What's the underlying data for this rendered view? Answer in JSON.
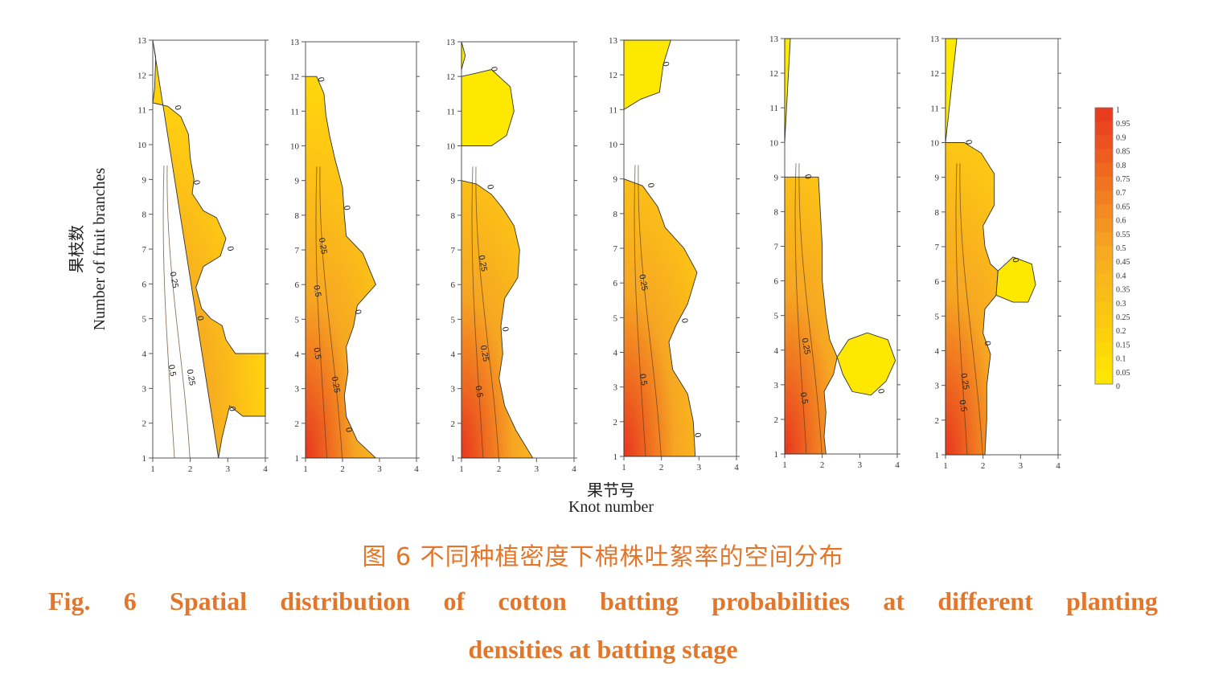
{
  "figure": {
    "ylabel_cn": "果枝数",
    "ylabel_en": "Number of fruit branches",
    "xlabel_cn": "果节号",
    "xlabel_en": "Knot number",
    "caption_cn": "图 6    不同种植密度下棉株吐絮率的空间分布",
    "caption_en_line1": "Fig. 6    Spatial distribution of cotton batting probabilities at different planting",
    "caption_en_line2": "densities at batting stage"
  },
  "colors": {
    "low": "#ffe800",
    "mid": "#f6a623",
    "high": "#e8351e"
  },
  "chart_data": [
    {
      "type": "heatmap",
      "panel": 1,
      "xlim": [
        1,
        4
      ],
      "ylim": [
        1,
        13
      ],
      "xticks": [
        1,
        2,
        3,
        4
      ],
      "yticks": [
        1,
        2,
        3,
        4,
        5,
        6,
        7,
        8,
        9,
        10,
        11,
        12,
        13
      ],
      "zero_contour": [
        [
          1,
          13
        ],
        [
          1.08,
          12.5
        ],
        [
          1.05,
          11.6
        ],
        [
          1,
          11.2
        ],
        [
          1.4,
          11.1
        ],
        [
          1.75,
          10.8
        ],
        [
          1.95,
          10.3
        ],
        [
          2,
          9.6
        ],
        [
          2.1,
          9
        ],
        [
          2.05,
          8.6
        ],
        [
          2.35,
          8.1
        ],
        [
          2.7,
          7.9
        ],
        [
          2.95,
          7.3
        ],
        [
          2.8,
          6.8
        ],
        [
          2.35,
          6.5
        ],
        [
          2.15,
          5.9
        ],
        [
          2.3,
          5.3
        ],
        [
          2.55,
          5
        ],
        [
          2.85,
          4.8
        ],
        [
          2.95,
          4.4
        ],
        [
          3.2,
          4
        ],
        [
          4,
          4
        ],
        [
          4,
          2.2
        ],
        [
          3.4,
          2.2
        ],
        [
          3.05,
          2.5
        ],
        [
          2.85,
          1.6
        ],
        [
          2.75,
          1
        ]
      ],
      "contour_labels": [
        {
          "value": "0",
          "x": 1.6,
          "y": 11.05
        },
        {
          "value": "0",
          "x": 2.1,
          "y": 8.9
        },
        {
          "value": "0",
          "x": 3.0,
          "y": 7.0
        },
        {
          "value": "0",
          "x": 2.2,
          "y": 5.0
        },
        {
          "value": "0",
          "x": 3.05,
          "y": 2.4
        },
        {
          "value": "0.25",
          "x": 1.5,
          "y": 6.1
        },
        {
          "value": "0.25",
          "x": 1.95,
          "y": 3.3
        },
        {
          "value": "0.5",
          "x": 1.45,
          "y": 3.5
        }
      ]
    },
    {
      "type": "heatmap",
      "panel": 2,
      "xlim": [
        1,
        4
      ],
      "ylim": [
        1,
        13
      ],
      "xticks": [
        1,
        2,
        3,
        4
      ],
      "yticks": [
        1,
        2,
        3,
        4,
        5,
        6,
        7,
        8,
        9,
        10,
        11,
        12,
        13
      ],
      "zero_contour": [
        [
          1,
          12
        ],
        [
          1.3,
          12
        ],
        [
          1.5,
          11.5
        ],
        [
          1.55,
          10.9
        ],
        [
          1.65,
          10.3
        ],
        [
          1.8,
          9.6
        ],
        [
          2,
          8.8
        ],
        [
          2.05,
          8
        ],
        [
          2.1,
          7.4
        ],
        [
          2.55,
          6.9
        ],
        [
          2.9,
          6
        ],
        [
          2.4,
          5.4
        ],
        [
          2.3,
          4.8
        ],
        [
          2.1,
          4.2
        ],
        [
          2.15,
          3.5
        ],
        [
          2.05,
          2.8
        ],
        [
          2.1,
          2.2
        ],
        [
          2.4,
          1.5
        ],
        [
          2.9,
          1
        ],
        [
          1,
          1
        ]
      ],
      "contour_labels": [
        {
          "value": "0",
          "x": 1.35,
          "y": 11.9
        },
        {
          "value": "0",
          "x": 2.05,
          "y": 8.2
        },
        {
          "value": "0",
          "x": 2.35,
          "y": 5.2
        },
        {
          "value": "0",
          "x": 2.1,
          "y": 1.8
        },
        {
          "value": "0.25",
          "x": 1.4,
          "y": 7.1
        },
        {
          "value": "0.25",
          "x": 1.75,
          "y": 3.1
        },
        {
          "value": "0.5",
          "x": 1.25,
          "y": 5.8
        },
        {
          "value": "0.5",
          "x": 1.25,
          "y": 4.0
        }
      ]
    },
    {
      "type": "heatmap",
      "panel": 3,
      "xlim": [
        1,
        4
      ],
      "ylim": [
        1,
        13
      ],
      "xticks": [
        1,
        2,
        3,
        4
      ],
      "yticks": [
        1,
        2,
        3,
        4,
        5,
        6,
        7,
        8,
        9,
        10,
        11,
        12,
        13
      ],
      "zero_contour": [
        [
          1,
          9
        ],
        [
          1.4,
          8.9
        ],
        [
          1.8,
          8.6
        ],
        [
          2.1,
          8.2
        ],
        [
          2.4,
          7.7
        ],
        [
          2.55,
          7
        ],
        [
          2.5,
          6.2
        ],
        [
          2.15,
          5.6
        ],
        [
          2.05,
          4.8
        ],
        [
          2.1,
          4
        ],
        [
          2,
          3.3
        ],
        [
          2.15,
          2.5
        ],
        [
          2.45,
          1.8
        ],
        [
          2.9,
          1
        ],
        [
          1,
          1
        ]
      ],
      "blob": [
        [
          1,
          12
        ],
        [
          1.4,
          12.1
        ],
        [
          1.8,
          12.2
        ],
        [
          2.3,
          11.7
        ],
        [
          2.4,
          11
        ],
        [
          2.2,
          10.3
        ],
        [
          1.8,
          10
        ],
        [
          1.35,
          10
        ],
        [
          1,
          10
        ]
      ],
      "sliver_top": [
        [
          1,
          13
        ],
        [
          1.1,
          12.6
        ],
        [
          1,
          12.2
        ]
      ],
      "contour_labels": [
        {
          "value": "0",
          "x": 1.8,
          "y": 12.2
        },
        {
          "value": "0",
          "x": 1.7,
          "y": 8.8
        },
        {
          "value": "0",
          "x": 2.1,
          "y": 4.7
        },
        {
          "value": "0.25",
          "x": 1.5,
          "y": 6.6
        },
        {
          "value": "0.25",
          "x": 1.55,
          "y": 4.0
        },
        {
          "value": "0.5",
          "x": 1.4,
          "y": 2.9
        }
      ]
    },
    {
      "type": "heatmap",
      "panel": 4,
      "xlim": [
        1,
        4
      ],
      "ylim": [
        1,
        13
      ],
      "xticks": [
        1,
        2,
        3,
        4
      ],
      "yticks": [
        1,
        2,
        3,
        4,
        5,
        6,
        7,
        8,
        9,
        10,
        11,
        12,
        13
      ],
      "zero_contour": [
        [
          1,
          9
        ],
        [
          1.5,
          8.8
        ],
        [
          1.9,
          8.2
        ],
        [
          2.1,
          7.6
        ],
        [
          2.6,
          7
        ],
        [
          2.95,
          6.3
        ],
        [
          2.7,
          5.4
        ],
        [
          2.4,
          4.8
        ],
        [
          2.2,
          4.3
        ],
        [
          2.3,
          3.5
        ],
        [
          2.7,
          2.8
        ],
        [
          2.85,
          2
        ],
        [
          2.9,
          1
        ],
        [
          1,
          1
        ]
      ],
      "cap": [
        [
          1,
          13
        ],
        [
          2.25,
          13
        ],
        [
          2.05,
          12.3
        ],
        [
          1.95,
          11.5
        ],
        [
          1.45,
          11.3
        ],
        [
          1,
          11
        ]
      ],
      "contour_labels": [
        {
          "value": "0",
          "x": 2.05,
          "y": 12.3
        },
        {
          "value": "0",
          "x": 1.65,
          "y": 8.8
        },
        {
          "value": "0",
          "x": 2.55,
          "y": 4.9
        },
        {
          "value": "0",
          "x": 2.9,
          "y": 1.6
        },
        {
          "value": "0.25",
          "x": 1.45,
          "y": 6.0
        },
        {
          "value": "0.5",
          "x": 1.45,
          "y": 3.2
        }
      ]
    },
    {
      "type": "heatmap",
      "panel": 5,
      "xlim": [
        1,
        4
      ],
      "ylim": [
        1,
        13
      ],
      "xticks": [
        1,
        2,
        3,
        4
      ],
      "yticks": [
        1,
        2,
        3,
        4,
        5,
        6,
        7,
        8,
        9,
        10,
        11,
        12,
        13
      ],
      "zero_contour": [
        [
          1,
          9
        ],
        [
          1.9,
          9
        ],
        [
          1.95,
          8
        ],
        [
          2,
          7
        ],
        [
          2,
          6
        ],
        [
          2.1,
          5
        ],
        [
          2.2,
          4.3
        ],
        [
          2.4,
          3.8
        ],
        [
          2.3,
          3.3
        ],
        [
          2.05,
          2.8
        ],
        [
          2.1,
          2.2
        ],
        [
          2.05,
          1.5
        ],
        [
          2.1,
          1
        ],
        [
          1,
          1
        ]
      ],
      "blob": [
        [
          2.4,
          3.8
        ],
        [
          2.7,
          4.3
        ],
        [
          3.2,
          4.5
        ],
        [
          3.75,
          4.3
        ],
        [
          3.95,
          3.7
        ],
        [
          3.7,
          3.1
        ],
        [
          3.3,
          2.7
        ],
        [
          2.8,
          2.8
        ],
        [
          2.55,
          3.3
        ]
      ],
      "sliver_top": [
        [
          1,
          13
        ],
        [
          1.15,
          13
        ],
        [
          1.05,
          11
        ],
        [
          1,
          10
        ]
      ],
      "contour_labels": [
        {
          "value": "0",
          "x": 1.55,
          "y": 9.0
        },
        {
          "value": "0",
          "x": 3.5,
          "y": 2.8
        },
        {
          "value": "0.25",
          "x": 1.5,
          "y": 4.1
        },
        {
          "value": "0.5",
          "x": 1.45,
          "y": 2.6
        }
      ]
    },
    {
      "type": "heatmap",
      "panel": 6,
      "xlim": [
        1,
        4
      ],
      "ylim": [
        1,
        13
      ],
      "xticks": [
        1,
        2,
        3,
        4
      ],
      "yticks": [
        1,
        2,
        3,
        4,
        5,
        6,
        7,
        8,
        9,
        10,
        11,
        12,
        13
      ],
      "zero_contour": [
        [
          1,
          10
        ],
        [
          1.5,
          10
        ],
        [
          1.95,
          9.7
        ],
        [
          2.3,
          9.1
        ],
        [
          2.3,
          8.2
        ],
        [
          2,
          7.6
        ],
        [
          2.05,
          7
        ],
        [
          2.2,
          6.5
        ],
        [
          2.4,
          6.3
        ],
        [
          2.35,
          5.6
        ],
        [
          2.05,
          5.2
        ],
        [
          2,
          4.5
        ],
        [
          2.2,
          3.9
        ],
        [
          2.1,
          3
        ],
        [
          2.1,
          2
        ],
        [
          2.05,
          1
        ],
        [
          1,
          1
        ]
      ],
      "blob": [
        [
          2.4,
          6.3
        ],
        [
          2.8,
          6.7
        ],
        [
          3.3,
          6.5
        ],
        [
          3.4,
          5.9
        ],
        [
          3.2,
          5.4
        ],
        [
          2.8,
          5.4
        ],
        [
          2.35,
          5.6
        ]
      ],
      "sliver_top": [
        [
          1,
          13
        ],
        [
          1.3,
          13
        ],
        [
          1.1,
          11
        ],
        [
          1,
          10
        ]
      ],
      "contour_labels": [
        {
          "value": "0",
          "x": 1.55,
          "y": 10.0
        },
        {
          "value": "0",
          "x": 2.8,
          "y": 6.6
        },
        {
          "value": "0",
          "x": 2.05,
          "y": 4.2
        },
        {
          "value": "0.25",
          "x": 1.45,
          "y": 3.1
        },
        {
          "value": "0.5",
          "x": 1.4,
          "y": 2.4
        }
      ]
    }
  ],
  "colorbar": {
    "ticks": [
      "1",
      "0.95",
      "0.9",
      "0.85",
      "0.8",
      "0.75",
      "0.7",
      "0.65",
      "0.6",
      "0.55",
      "0.5",
      "0.45",
      "0.4",
      "0.35",
      "0.3",
      "0.25",
      "0.2",
      "0.15",
      "0.1",
      "0.05",
      "0"
    ]
  }
}
